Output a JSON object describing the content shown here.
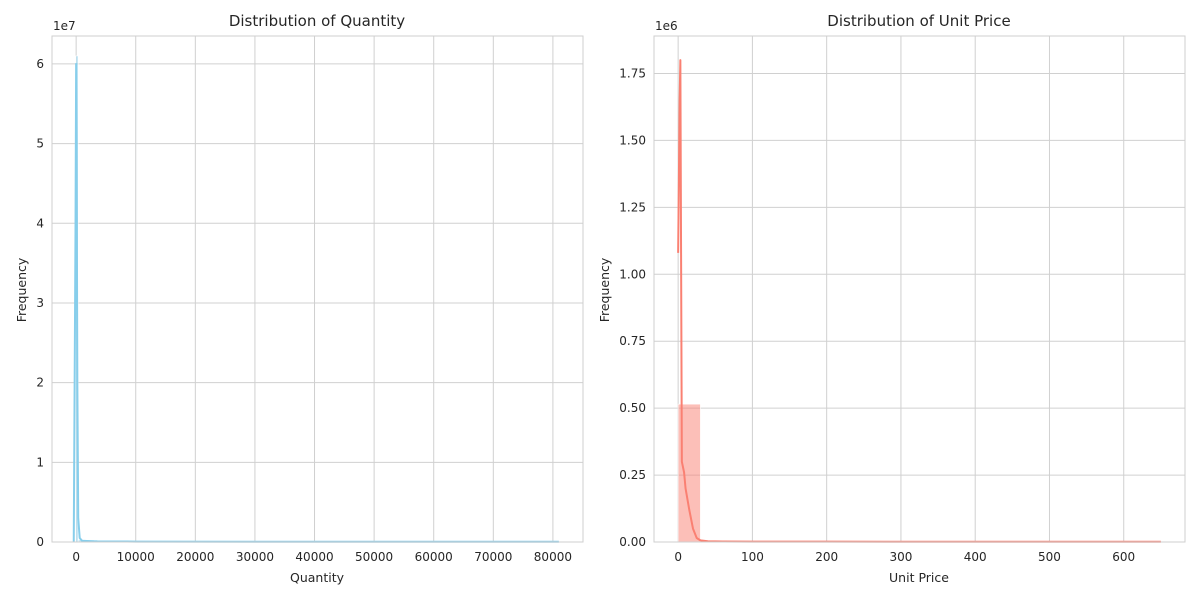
{
  "chart_data": [
    {
      "type": "histogram",
      "title": "Distribution of Quantity",
      "xlabel": "Quantity",
      "ylabel": "Frequency",
      "offset_label": "1e7",
      "y_scale": 10000000,
      "color": "#87ceeb",
      "xlim": [
        -4050,
        85050
      ],
      "ylim": [
        0,
        63500000
      ],
      "xticks": [
        0,
        10000,
        20000,
        30000,
        40000,
        50000,
        60000,
        70000,
        80000
      ],
      "xtick_labels": [
        "0",
        "10000",
        "20000",
        "30000",
        "40000",
        "50000",
        "60000",
        "70000",
        "80000"
      ],
      "yticks": [
        0,
        10000000,
        20000000,
        30000000,
        40000000,
        50000000,
        60000000
      ],
      "ytick_labels": [
        "0",
        "1",
        "2",
        "3",
        "4",
        "5",
        "6"
      ],
      "grid": true,
      "bins": [
        {
          "x0": -50,
          "x1": 350,
          "count": 61000000
        },
        {
          "x0": 350,
          "x1": 3600,
          "count": 270000
        },
        {
          "x0": 3600,
          "x1": 80995,
          "count": 40000
        }
      ],
      "kde": {
        "x": [
          -400,
          -100,
          0,
          80,
          200,
          350,
          600,
          1000,
          3000,
          10000,
          30000,
          60000,
          81000
        ],
        "y": [
          0,
          40000000,
          60000000,
          50000000,
          20000000,
          3000000,
          500000,
          150000,
          80000,
          50000,
          30000,
          30000,
          30000
        ]
      }
    },
    {
      "type": "histogram",
      "title": "Distribution of Unit Price",
      "xlabel": "Unit Price",
      "ylabel": "Frequency",
      "offset_label": "1e6",
      "y_scale": 1000000,
      "color": "#fa8072",
      "xlim": [
        -32.5,
        682.5
      ],
      "ylim": [
        0,
        1890000
      ],
      "xticks": [
        0,
        100,
        200,
        300,
        400,
        500,
        600
      ],
      "xtick_labels": [
        "0",
        "100",
        "200",
        "300",
        "400",
        "500",
        "600"
      ],
      "yticks": [
        0,
        250000,
        500000,
        750000,
        1000000,
        1250000,
        1500000,
        1750000
      ],
      "ytick_labels": [
        "0.00",
        "0.25",
        "0.50",
        "0.75",
        "1.00",
        "1.25",
        "1.50",
        "1.75"
      ],
      "grid": true,
      "bins": [
        {
          "x0": 0,
          "x1": 30,
          "count": 515000
        },
        {
          "x0": 30,
          "x1": 650,
          "count": 2000
        }
      ],
      "kde": {
        "x": [
          0,
          1,
          2,
          3,
          5,
          8,
          10,
          15,
          20,
          25,
          30,
          40,
          60,
          100,
          200,
          400,
          650
        ],
        "y": [
          1080000,
          1350000,
          1650000,
          1800000,
          300000,
          260000,
          200000,
          120000,
          50000,
          15000,
          6000,
          3000,
          2000,
          1500,
          1200,
          900,
          800
        ]
      }
    }
  ]
}
